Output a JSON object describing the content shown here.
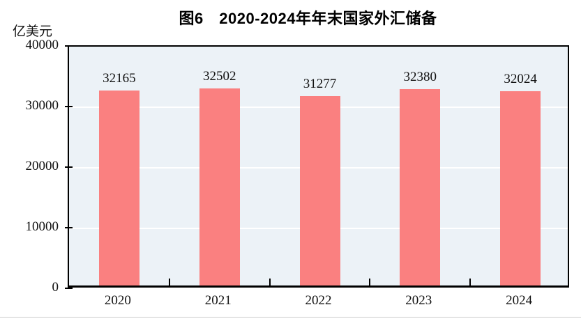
{
  "chart_data": {
    "type": "bar",
    "title": "图6　2020-2024年年末国家外汇储备",
    "unit_label": "亿美元",
    "ylabel": "亿美元",
    "xlabel": "",
    "categories": [
      "2020",
      "2021",
      "2022",
      "2023",
      "2024"
    ],
    "values": [
      32165,
      32502,
      31277,
      32380,
      32024
    ],
    "value_labels": [
      "32165",
      "32502",
      "31277",
      "32380",
      "32024"
    ],
    "ylim": [
      0,
      40000
    ],
    "yticks": [
      0,
      10000,
      20000,
      30000,
      40000
    ],
    "ytick_labels": [
      "0",
      "10000",
      "20000",
      "30000",
      "40000"
    ],
    "legend_position": "none",
    "grid": "horizontal white gridlines on shaded panel",
    "colors": {
      "bar": "#FA8080",
      "plot_background": "#ECF2F7",
      "gridline": "#FFFFFF",
      "axis": "#000000",
      "text": "#111111",
      "bottom_rule": "#CBCBCB"
    }
  }
}
